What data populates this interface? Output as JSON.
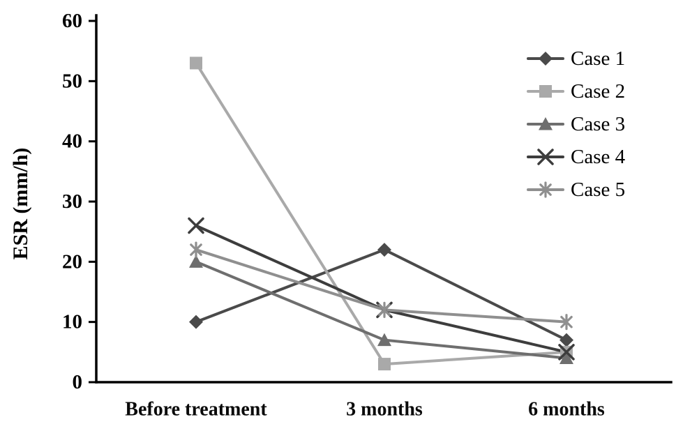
{
  "page": {
    "background": "#ffffff"
  },
  "chart_data": {
    "type": "line",
    "title": "",
    "xlabel": "",
    "ylabel": "ESR (mm/h)",
    "ylim": [
      0,
      60
    ],
    "ytick_step": 10,
    "ytick_labels": [
      "0",
      "10",
      "20",
      "30",
      "40",
      "50",
      "60"
    ],
    "categories": [
      "Before treatment",
      "3 months",
      "6 months"
    ],
    "series": [
      {
        "name": "Case 1",
        "marker": "diamond",
        "color": "#4a4a4a",
        "values": [
          10,
          22,
          7
        ]
      },
      {
        "name": "Case 2",
        "marker": "square",
        "color": "#a9a9a9",
        "values": [
          53,
          3,
          5
        ]
      },
      {
        "name": "Case 3",
        "marker": "triangle",
        "color": "#6e6e6e",
        "values": [
          20,
          7,
          4
        ]
      },
      {
        "name": "Case 4",
        "marker": "x",
        "color": "#3d3d3d",
        "values": [
          26,
          12,
          5
        ]
      },
      {
        "name": "Case 5",
        "marker": "asterisk",
        "color": "#8f8f8f",
        "values": [
          22,
          12,
          10
        ]
      }
    ],
    "legend_position": "top-right",
    "grid": false,
    "axis_color": "#000000"
  }
}
